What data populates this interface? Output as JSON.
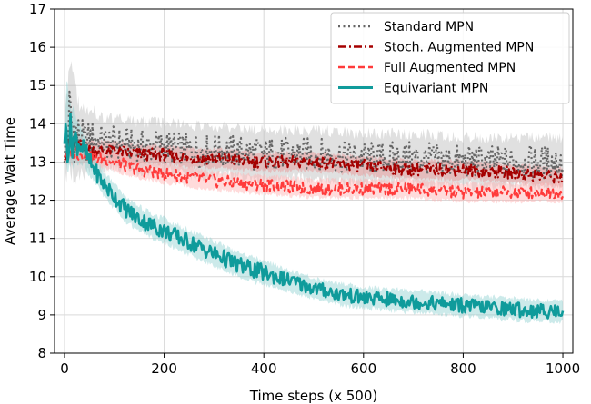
{
  "chart_data": {
    "type": "line",
    "title": "",
    "xlabel": "Time steps (x 500)",
    "ylabel": "Average Wait Time",
    "xlim": [
      -20,
      1020
    ],
    "ylim": [
      8,
      17
    ],
    "xticks": [
      0,
      200,
      400,
      600,
      800,
      1000
    ],
    "yticks": [
      8,
      9,
      10,
      11,
      12,
      13,
      14,
      15,
      16,
      17
    ],
    "grid": true,
    "legend_position": "top-right",
    "series": [
      {
        "name": "Standard MPN",
        "color": "#666666",
        "band_color": "#bbbbbb",
        "line_style": "dotted",
        "x": [
          0,
          10,
          20,
          30,
          40,
          60,
          80,
          100,
          150,
          200,
          250,
          300,
          400,
          500,
          600,
          700,
          800,
          900,
          1000
        ],
        "values": [
          13.3,
          14.2,
          13.8,
          13.6,
          13.5,
          13.6,
          13.5,
          13.5,
          13.4,
          13.4,
          13.3,
          13.3,
          13.2,
          13.2,
          13.1,
          13.1,
          13.0,
          13.0,
          13.0
        ],
        "band": [
          0.9,
          1.8,
          1.5,
          1.1,
          1.0,
          0.9,
          0.8,
          0.8,
          0.8,
          0.8,
          0.8,
          0.8,
          0.8,
          0.8,
          0.8,
          0.8,
          0.8,
          0.8,
          0.8
        ]
      },
      {
        "name": "Stoch. Augmented MPN",
        "color": "#a50000",
        "band_color": "#e89090",
        "line_style": "dashdot",
        "x": [
          0,
          10,
          20,
          30,
          40,
          60,
          80,
          100,
          150,
          200,
          250,
          300,
          400,
          500,
          600,
          700,
          800,
          900,
          1000
        ],
        "values": [
          13.2,
          13.4,
          13.5,
          13.4,
          13.3,
          13.3,
          13.3,
          13.3,
          13.2,
          13.2,
          13.1,
          13.1,
          13.0,
          13.0,
          12.9,
          12.8,
          12.8,
          12.7,
          12.6
        ],
        "band": [
          0.3,
          0.5,
          0.4,
          0.4,
          0.3,
          0.3,
          0.3,
          0.3,
          0.3,
          0.3,
          0.3,
          0.3,
          0.3,
          0.3,
          0.3,
          0.3,
          0.3,
          0.3,
          0.3
        ]
      },
      {
        "name": "Full Augmented MPN",
        "color": "#ff3b3b",
        "band_color": "#ffb0b0",
        "line_style": "dashed",
        "x": [
          0,
          10,
          20,
          30,
          40,
          60,
          80,
          100,
          150,
          200,
          250,
          300,
          400,
          500,
          600,
          700,
          800,
          900,
          1000
        ],
        "values": [
          13.2,
          13.3,
          13.3,
          13.2,
          13.2,
          13.1,
          13.1,
          13.0,
          12.8,
          12.7,
          12.6,
          12.5,
          12.4,
          12.3,
          12.3,
          12.3,
          12.2,
          12.2,
          12.2
        ],
        "band": [
          0.3,
          0.4,
          0.4,
          0.3,
          0.3,
          0.3,
          0.3,
          0.3,
          0.3,
          0.3,
          0.3,
          0.3,
          0.3,
          0.3,
          0.3,
          0.3,
          0.3,
          0.3,
          0.3
        ]
      },
      {
        "name": "Equivariant MPN",
        "color": "#0f9b9b",
        "band_color": "#8fd0d0",
        "line_style": "solid",
        "x": [
          0,
          5,
          10,
          20,
          30,
          40,
          50,
          60,
          80,
          100,
          120,
          150,
          200,
          250,
          300,
          350,
          400,
          450,
          500,
          550,
          600,
          650,
          700,
          750,
          800,
          850,
          900,
          950,
          1000
        ],
        "values": [
          13.6,
          13.8,
          13.7,
          13.6,
          13.5,
          13.3,
          13.0,
          12.8,
          12.4,
          12.1,
          11.8,
          11.5,
          11.2,
          10.9,
          10.6,
          10.3,
          10.1,
          9.9,
          9.7,
          9.55,
          9.45,
          9.4,
          9.35,
          9.3,
          9.25,
          9.2,
          9.15,
          9.1,
          9.1
        ],
        "band": [
          0.4,
          1.6,
          1.2,
          0.8,
          0.6,
          0.5,
          0.5,
          0.4,
          0.4,
          0.4,
          0.4,
          0.4,
          0.4,
          0.4,
          0.4,
          0.4,
          0.4,
          0.35,
          0.35,
          0.35,
          0.35,
          0.35,
          0.35,
          0.35,
          0.35,
          0.35,
          0.35,
          0.35,
          0.35
        ]
      }
    ]
  }
}
